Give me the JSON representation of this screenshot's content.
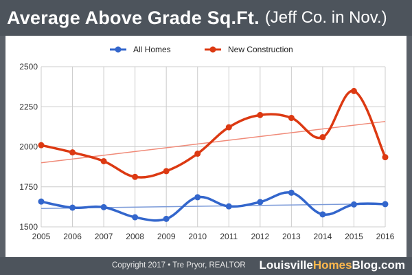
{
  "title": {
    "main": "Average Above Grade Sq.Ft.",
    "sub": "(Jeff Co. in Nov.)"
  },
  "footer": {
    "copyright": "Copyright 2017 • Tre Pryor, REALTOR",
    "blog_part1": "Louisville",
    "blog_part2": "Homes",
    "blog_part3": "Blog.com"
  },
  "chart_data": {
    "type": "line",
    "title": "Average Above Grade Sq.Ft. (Jeff Co. in Nov.)",
    "xlabel": "",
    "ylabel": "",
    "categories": [
      "2005",
      "2006",
      "2007",
      "2008",
      "2009",
      "2010",
      "2011",
      "2012",
      "2013",
      "2014",
      "2015",
      "2016"
    ],
    "ylim": [
      1500,
      2500
    ],
    "yticks": [
      1500,
      1750,
      2000,
      2250,
      2500
    ],
    "grid": true,
    "legend_position": "top-center",
    "series": [
      {
        "name": "All Homes",
        "color": "#3366cc",
        "values": [
          1658,
          1620,
          1623,
          1560,
          1550,
          1685,
          1628,
          1655,
          1713,
          1578,
          1640,
          1642
        ],
        "trendline": {
          "color": "#7b9ad8",
          "start": 1615,
          "end": 1645
        }
      },
      {
        "name": "New Construction",
        "color": "#dc3912",
        "values": [
          2010,
          1965,
          1910,
          1812,
          1848,
          1957,
          2122,
          2198,
          2180,
          2060,
          2348,
          1935
        ],
        "trendline": {
          "color": "#f08a78",
          "start": 1900,
          "end": 2158
        }
      }
    ]
  }
}
